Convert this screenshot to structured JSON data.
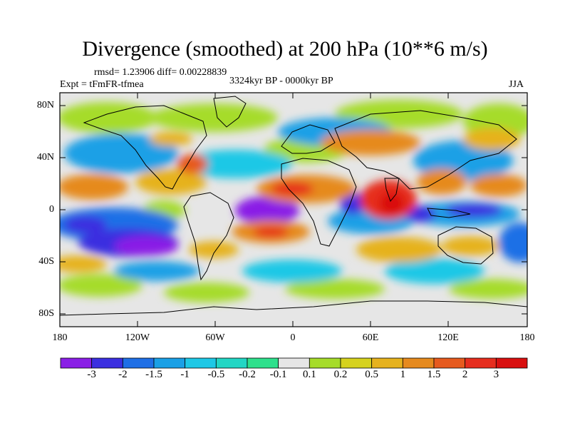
{
  "title": "Divergence (smoothed) at 200 hPa (10**6 m/s)",
  "stats_text": "rmsd= 1.23906 diff= 0.00228839",
  "expt_text": "Expt = tFmFR-tfmea",
  "period_text": "3324kyr BP - 0000kyr BP",
  "season_text": "JJA",
  "y_ticks": [
    "80N",
    "40N",
    "0",
    "40S",
    "80S"
  ],
  "x_ticks": [
    "180",
    "120W",
    "60W",
    "0",
    "60E",
    "120E",
    "180"
  ],
  "colorbar": {
    "labels": [
      "-3",
      "-2",
      "-1.5",
      "-1",
      "-0.5",
      "-0.2",
      "-0.1",
      "0.1",
      "0.2",
      "0.5",
      "1",
      "1.5",
      "2",
      "3"
    ],
    "colors": [
      "#8a1fe6",
      "#3b2fe0",
      "#1f6fe6",
      "#1aa0e6",
      "#1ec8e6",
      "#22d6c4",
      "#2ee08c",
      "#e6e6e6",
      "#a6dc2a",
      "#d6d21e",
      "#e6b21e",
      "#e68a1e",
      "#e65a1e",
      "#e62d1e",
      "#d90f0f"
    ]
  }
}
